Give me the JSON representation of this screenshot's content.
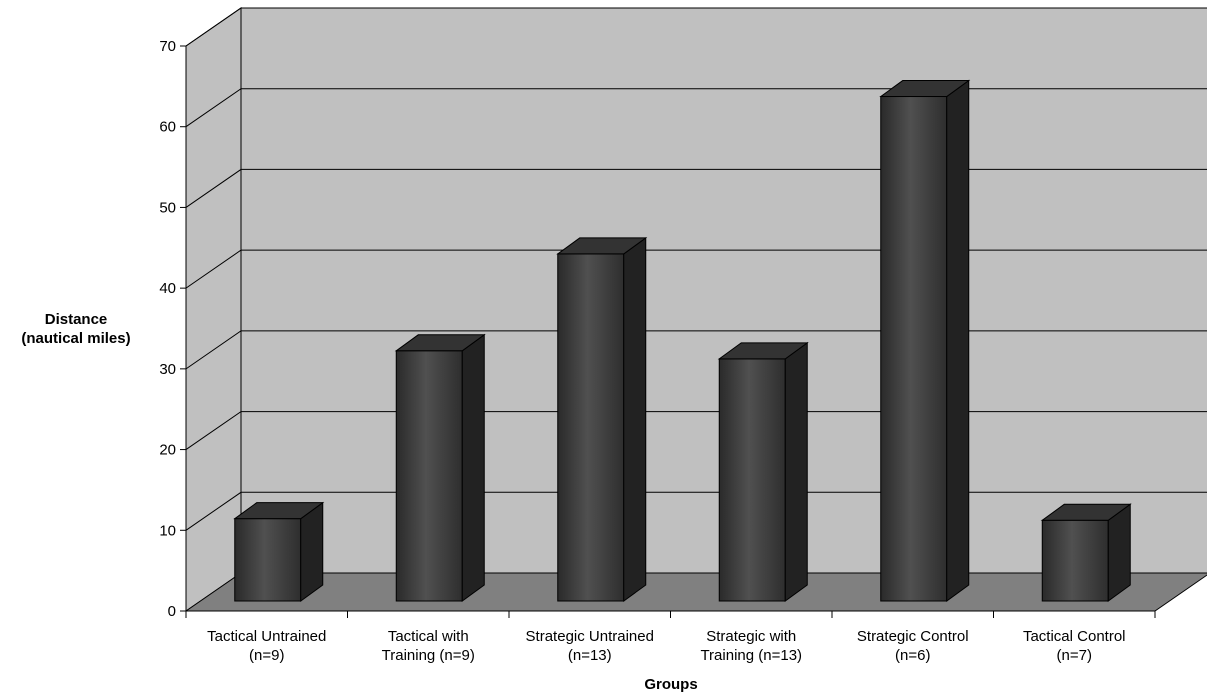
{
  "chart_data": {
    "type": "bar",
    "title": "",
    "ylabel_lines": [
      "Distance",
      "(nautical miles)"
    ],
    "xlabel": "Groups",
    "ylim": [
      0,
      70
    ],
    "yticks": [
      0,
      10,
      20,
      30,
      40,
      50,
      60,
      70
    ],
    "grid": true,
    "categories": [
      [
        "Tactical Untrained",
        "(n=9)"
      ],
      [
        "Tactical with",
        "Training (n=9)"
      ],
      [
        "Strategic Untrained",
        "(n=13)"
      ],
      [
        "Strategic with",
        "Training (n=13)"
      ],
      [
        "Strategic Control",
        "(n=6)"
      ],
      [
        "Tactical Control",
        "(n=7)"
      ]
    ],
    "values": [
      10.2,
      31.0,
      43.0,
      30.0,
      62.5,
      10.0
    ],
    "colors": {
      "back_wall": "#c0c0c0",
      "side_wall": "#c0c0c0",
      "floor": "#808080",
      "bar_front": "#404040",
      "bar_side": "#222222",
      "bar_top": "#333333"
    }
  }
}
